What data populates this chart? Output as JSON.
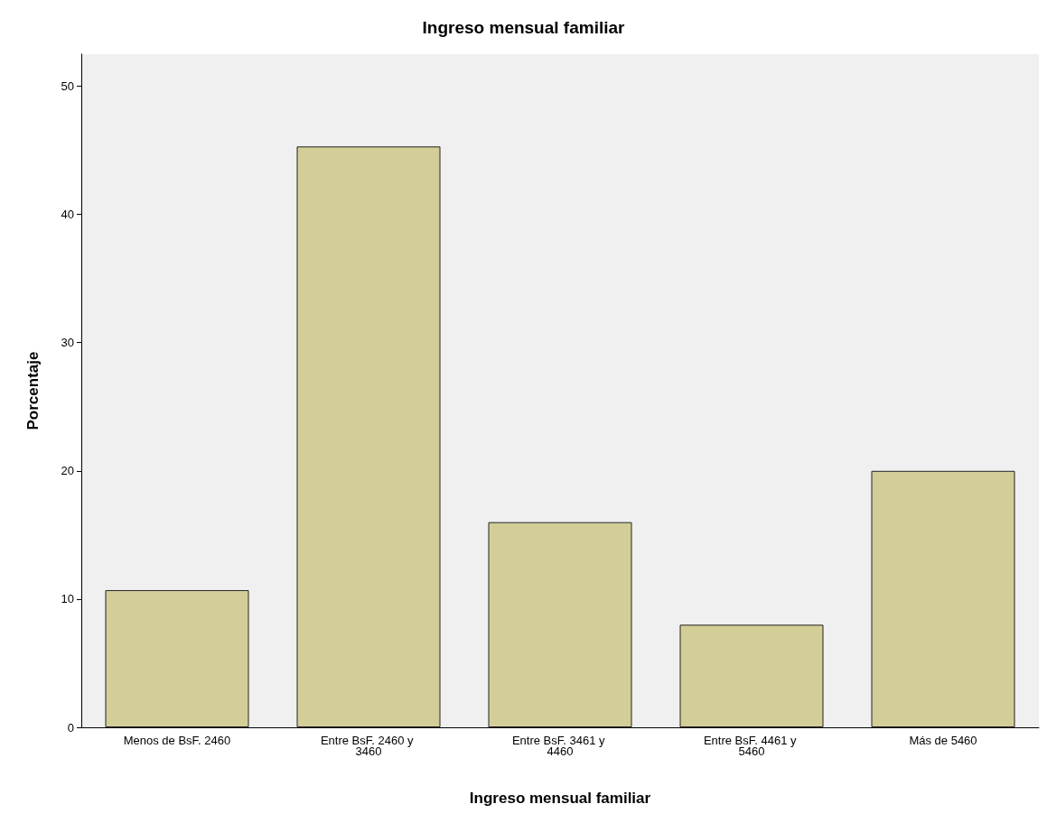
{
  "chart_data": {
    "type": "bar",
    "title": "Ingreso mensual familiar",
    "xlabel": "Ingreso mensual familiar",
    "ylabel": "Porcentaje",
    "categories": [
      "Menos de BsF. 2460",
      "Entre BsF. 2460 y 3460",
      "Entre BsF. 3461 y 4460",
      "Entre BsF. 4461 y 5460",
      "Más de 5460"
    ],
    "values": [
      10.7,
      45.3,
      16.0,
      8.0,
      20.0
    ],
    "color": "#d3ce97",
    "ylim": [
      0,
      52.5
    ],
    "yticks": [
      0,
      10,
      20,
      30,
      40,
      50
    ],
    "grid": false
  }
}
